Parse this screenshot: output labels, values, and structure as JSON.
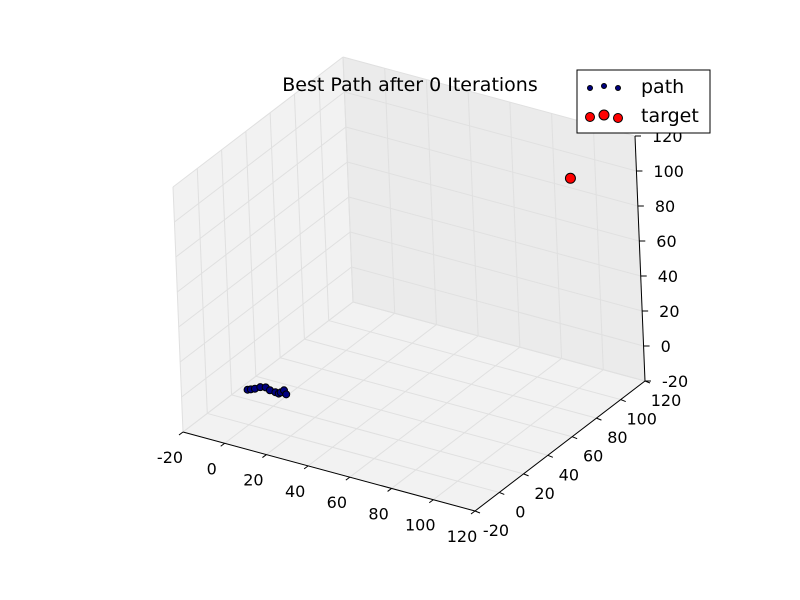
{
  "chart_data": {
    "type": "scatter",
    "projection": "3d",
    "title": "Best Path after 0 Iterations",
    "xlabel": "",
    "ylabel": "",
    "zlabel": "",
    "xlim": [
      -20,
      120
    ],
    "ylim": [
      -20,
      120
    ],
    "zlim": [
      -20,
      120
    ],
    "x_ticks": [
      -20,
      0,
      20,
      40,
      60,
      80,
      100,
      120
    ],
    "y_ticks": [
      -20,
      0,
      20,
      40,
      60,
      80,
      100,
      120
    ],
    "z_ticks": [
      -20,
      0,
      20,
      40,
      60,
      80,
      100,
      120
    ],
    "grid": true,
    "legend_position": "top-right",
    "series": [
      {
        "name": "path",
        "color": "#000080",
        "marker": "circle-small",
        "points": [
          {
            "x": 0,
            "y": 0,
            "z": 0
          },
          {
            "x": 1,
            "y": 1,
            "z": 0
          },
          {
            "x": 3,
            "y": 1,
            "z": 1
          },
          {
            "x": 5,
            "y": 2,
            "z": 2
          },
          {
            "x": 7,
            "y": 3,
            "z": 2
          },
          {
            "x": 9,
            "y": 3,
            "z": 1
          },
          {
            "x": 11,
            "y": 4,
            "z": 0
          },
          {
            "x": 12,
            "y": 5,
            "z": -1
          },
          {
            "x": 13,
            "y": 5,
            "z": 0
          },
          {
            "x": 14,
            "y": 6,
            "z": 1
          },
          {
            "x": 15,
            "y": 6,
            "z": -1
          }
        ]
      },
      {
        "name": "target",
        "color": "#ff0000",
        "marker": "circle-large",
        "points": [
          {
            "x": 100,
            "y": 100,
            "z": 100
          }
        ]
      }
    ]
  }
}
